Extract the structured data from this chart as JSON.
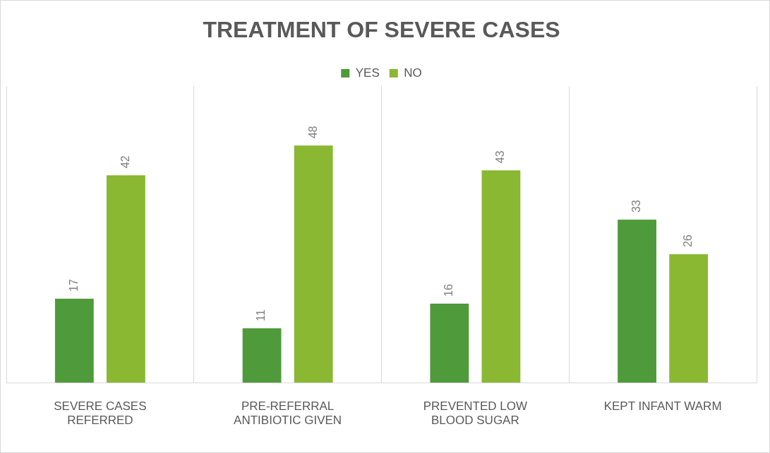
{
  "chart_data": {
    "type": "bar",
    "title": "TREATMENT OF SEVERE CASES",
    "categories": [
      "SEVERE CASES REFERRED",
      "PRE-REFERRAL ANTIBIOTIC GIVEN",
      "PREVENTED LOW BLOOD SUGAR",
      "KEPT INFANT WARM"
    ],
    "series": [
      {
        "name": "YES",
        "color": "#4f9a3a",
        "values": [
          17,
          11,
          16,
          33
        ]
      },
      {
        "name": "NO",
        "color": "#8ab833",
        "values": [
          42,
          48,
          43,
          26
        ]
      }
    ],
    "ylim": [
      0,
      60
    ],
    "grid": "x",
    "legend": "top",
    "data_labels": true
  }
}
